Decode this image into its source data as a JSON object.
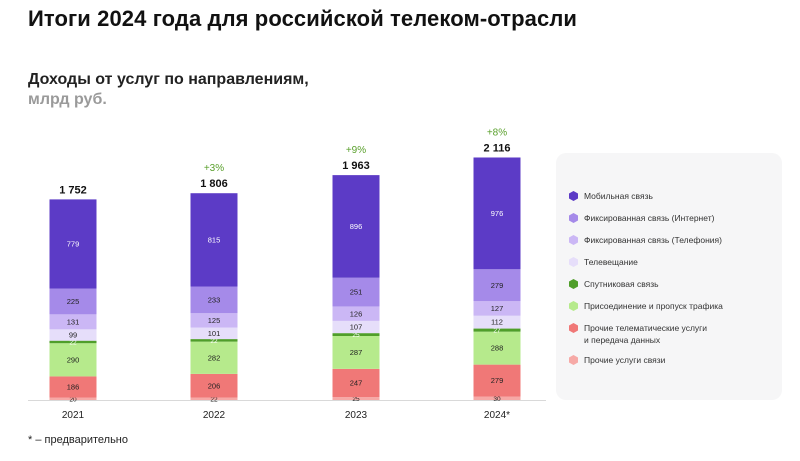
{
  "title": "Итоги 2024 года для российской телеком-отрасли",
  "subtitle": "Доходы от услуг по направлениям,",
  "unit": "млрд руб.",
  "footnote": "* – предварительно",
  "chart_data": {
    "type": "bar",
    "stacked": true,
    "categories": [
      "2021",
      "2022",
      "2023",
      "2024*"
    ],
    "totals": [
      "1 752",
      "1 806",
      "1 963",
      "2 116"
    ],
    "growth": [
      "",
      "+3%",
      "+9%",
      "+8%"
    ],
    "series": [
      {
        "name": "Прочие услуги связи",
        "color": "#f6a9a6",
        "values": [
          20,
          22,
          25,
          30
        ]
      },
      {
        "name": "Прочие телематические услуги\nи передача данных",
        "color": "#f07877",
        "values": [
          186,
          206,
          247,
          279
        ]
      },
      {
        "name": "Присоединение и пропуск трафика",
        "color": "#b6ea8c",
        "values": [
          290,
          282,
          287,
          288
        ]
      },
      {
        "name": "Спутниковая связь",
        "color": "#4f9e2a",
        "values": [
          22,
          22,
          25,
          27
        ]
      },
      {
        "name": "Телевещание",
        "color": "#e6defa",
        "values": [
          99,
          101,
          107,
          112
        ]
      },
      {
        "name": "Фиксированная связь (Телефония)",
        "color": "#cbb7f5",
        "values": [
          131,
          125,
          126,
          127
        ]
      },
      {
        "name": "Фиксированная связь (Интернет)",
        "color": "#a58ae9",
        "values": [
          225,
          233,
          251,
          279
        ]
      },
      {
        "name": "Мобильная связь",
        "color": "#5c3bc6",
        "values": [
          779,
          815,
          896,
          976
        ]
      }
    ],
    "legend_order": [
      7,
      6,
      5,
      4,
      3,
      2,
      1,
      0
    ],
    "growth_color": "#5aa02c",
    "legend": "right",
    "grid": false
  }
}
